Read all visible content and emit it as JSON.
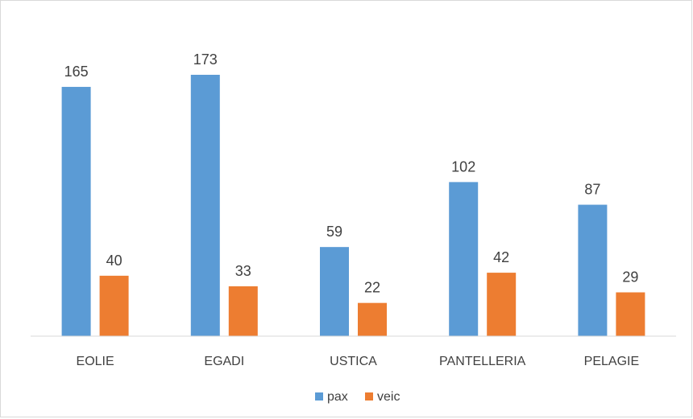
{
  "chart_data": {
    "type": "bar",
    "categories": [
      "EOLIE",
      "EGADI",
      "USTICA",
      "PANTELLERIA",
      "PELAGIE"
    ],
    "series": [
      {
        "name": "pax",
        "values": [
          165,
          173,
          59,
          102,
          87
        ],
        "color": "#5b9bd5"
      },
      {
        "name": "veic",
        "values": [
          40,
          33,
          22,
          42,
          29
        ],
        "color": "#ed7d31"
      }
    ],
    "ylim": [
      0,
      180
    ],
    "grid": false,
    "legend_position": "bottom",
    "data_labels": true
  }
}
